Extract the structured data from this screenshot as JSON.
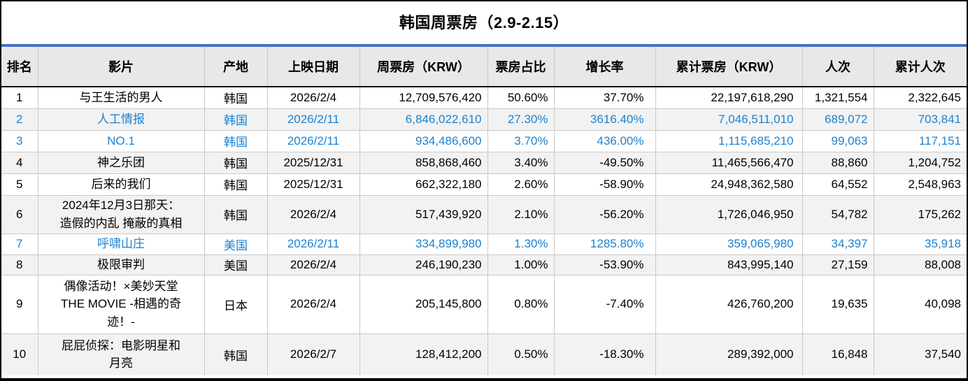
{
  "title": "韩国周票房（2.9-2.15）",
  "colors": {
    "header_rule_blue": "#4472C4",
    "new_release_text_blue": "#1B82D2",
    "header_bg": "#E8E8E8",
    "alt_row_bg": "#F2F2F2"
  },
  "table": {
    "columns": [
      {
        "key": "rank",
        "label": "排名"
      },
      {
        "key": "film",
        "label": "影片"
      },
      {
        "key": "origin",
        "label": "产地"
      },
      {
        "key": "release_date",
        "label": "上映日期"
      },
      {
        "key": "weekly_gross",
        "label": "周票房（KRW）"
      },
      {
        "key": "share",
        "label": "票房占比"
      },
      {
        "key": "growth",
        "label": "增长率"
      },
      {
        "key": "cumulative_gross",
        "label": "累计票房（KRW）"
      },
      {
        "key": "admissions",
        "label": "人次"
      },
      {
        "key": "cumulative_admissions",
        "label": "累计人次"
      }
    ],
    "rows": [
      {
        "rank": "1",
        "film": "与王生活的男人",
        "origin": "韩国",
        "release_date": "2026/2/4",
        "weekly_gross": "12,709,576,420",
        "share": "50.60%",
        "growth": "37.70%",
        "cumulative_gross": "22,197,618,290",
        "admissions": "1,321,554",
        "cumulative_admissions": "2,322,645",
        "new_release": false
      },
      {
        "rank": "2",
        "film": "人工情报",
        "origin": "韩国",
        "release_date": "2026/2/11",
        "weekly_gross": "6,846,022,610",
        "share": "27.30%",
        "growth": "3616.40%",
        "cumulative_gross": "7,046,511,010",
        "admissions": "689,072",
        "cumulative_admissions": "703,841",
        "new_release": true
      },
      {
        "rank": "3",
        "film": "NO.1",
        "origin": "韩国",
        "release_date": "2026/2/11",
        "weekly_gross": "934,486,600",
        "share": "3.70%",
        "growth": "436.00%",
        "cumulative_gross": "1,115,685,210",
        "admissions": "99,063",
        "cumulative_admissions": "117,151",
        "new_release": true
      },
      {
        "rank": "4",
        "film": "神之乐团",
        "origin": "韩国",
        "release_date": "2025/12/31",
        "weekly_gross": "858,868,460",
        "share": "3.40%",
        "growth": "-49.50%",
        "cumulative_gross": "11,465,566,470",
        "admissions": "88,860",
        "cumulative_admissions": "1,204,752",
        "new_release": false
      },
      {
        "rank": "5",
        "film": "后来的我们",
        "origin": "韩国",
        "release_date": "2025/12/31",
        "weekly_gross": "662,322,180",
        "share": "2.60%",
        "growth": "-58.90%",
        "cumulative_gross": "24,948,362,580",
        "admissions": "64,552",
        "cumulative_admissions": "2,548,963",
        "new_release": false
      },
      {
        "rank": "6",
        "film": "2024年12月3日那天：\n造假的内乱 掩蔽的真相",
        "origin": "韩国",
        "release_date": "2026/2/4",
        "weekly_gross": "517,439,920",
        "share": "2.10%",
        "growth": "-56.20%",
        "cumulative_gross": "1,726,046,950",
        "admissions": "54,782",
        "cumulative_admissions": "175,262",
        "new_release": false
      },
      {
        "rank": "7",
        "film": "呼啸山庄",
        "origin": "美国",
        "release_date": "2026/2/11",
        "weekly_gross": "334,899,980",
        "share": "1.30%",
        "growth": "1285.80%",
        "cumulative_gross": "359,065,980",
        "admissions": "34,397",
        "cumulative_admissions": "35,918",
        "new_release": true
      },
      {
        "rank": "8",
        "film": "极限审判",
        "origin": "美国",
        "release_date": "2026/2/4",
        "weekly_gross": "246,190,230",
        "share": "1.00%",
        "growth": "-53.90%",
        "cumulative_gross": "843,995,140",
        "admissions": "27,159",
        "cumulative_admissions": "88,008",
        "new_release": false
      },
      {
        "rank": "9",
        "film": "偶像活动！×美妙天堂\nTHE MOVIE -相遇的奇\n迹！-",
        "origin": "日本",
        "release_date": "2026/2/4",
        "weekly_gross": "205,145,800",
        "share": "0.80%",
        "growth": "-7.40%",
        "cumulative_gross": "426,760,200",
        "admissions": "19,635",
        "cumulative_admissions": "40,098",
        "new_release": false
      },
      {
        "rank": "10",
        "film": "屁屁侦探：电影明星和\n月亮",
        "origin": "韩国",
        "release_date": "2026/2/7",
        "weekly_gross": "128,412,200",
        "share": "0.50%",
        "growth": "-18.30%",
        "cumulative_gross": "289,392,000",
        "admissions": "16,848",
        "cumulative_admissions": "37,540",
        "new_release": false
      }
    ]
  },
  "chart_data": {
    "type": "table",
    "title": "韩国周票房（2.9-2.15）",
    "columns": [
      "排名",
      "影片",
      "产地",
      "上映日期",
      "周票房（KRW）",
      "票房占比",
      "增长率",
      "累计票房（KRW）",
      "人次",
      "累计人次"
    ],
    "rows": [
      [
        "1",
        "与王生活的男人",
        "韩国",
        "2026/2/4",
        "12,709,576,420",
        "50.60%",
        "37.70%",
        "22,197,618,290",
        "1,321,554",
        "2,322,645"
      ],
      [
        "2",
        "人工情报",
        "韩国",
        "2026/2/11",
        "6,846,022,610",
        "27.30%",
        "3616.40%",
        "7,046,511,010",
        "689,072",
        "703,841"
      ],
      [
        "3",
        "NO.1",
        "韩国",
        "2026/2/11",
        "934,486,600",
        "3.70%",
        "436.00%",
        "1,115,685,210",
        "99,063",
        "117,151"
      ],
      [
        "4",
        "神之乐团",
        "韩国",
        "2025/12/31",
        "858,868,460",
        "3.40%",
        "-49.50%",
        "11,465,566,470",
        "88,860",
        "1,204,752"
      ],
      [
        "5",
        "后来的我们",
        "韩国",
        "2025/12/31",
        "662,322,180",
        "2.60%",
        "-58.90%",
        "24,948,362,580",
        "64,552",
        "2,548,963"
      ],
      [
        "6",
        "2024年12月3日那天：造假的内乱 掩蔽的真相",
        "韩国",
        "2026/2/4",
        "517,439,920",
        "2.10%",
        "-56.20%",
        "1,726,046,950",
        "54,782",
        "175,262"
      ],
      [
        "7",
        "呼啸山庄",
        "美国",
        "2026/2/11",
        "334,899,980",
        "1.30%",
        "1285.80%",
        "359,065,980",
        "34,397",
        "35,918"
      ],
      [
        "8",
        "极限审判",
        "美国",
        "2026/2/4",
        "246,190,230",
        "1.00%",
        "-53.90%",
        "843,995,140",
        "27,159",
        "88,008"
      ],
      [
        "9",
        "偶像活动！×美妙天堂 THE MOVIE -相遇的奇迹！-",
        "日本",
        "2026/2/4",
        "205,145,800",
        "0.80%",
        "-7.40%",
        "426,760,200",
        "19,635",
        "40,098"
      ],
      [
        "10",
        "屁屁侦探：电影明星和月亮",
        "韩国",
        "2026/2/7",
        "128,412,200",
        "0.50%",
        "-18.30%",
        "289,392,000",
        "16,848",
        "37,540"
      ]
    ]
  }
}
